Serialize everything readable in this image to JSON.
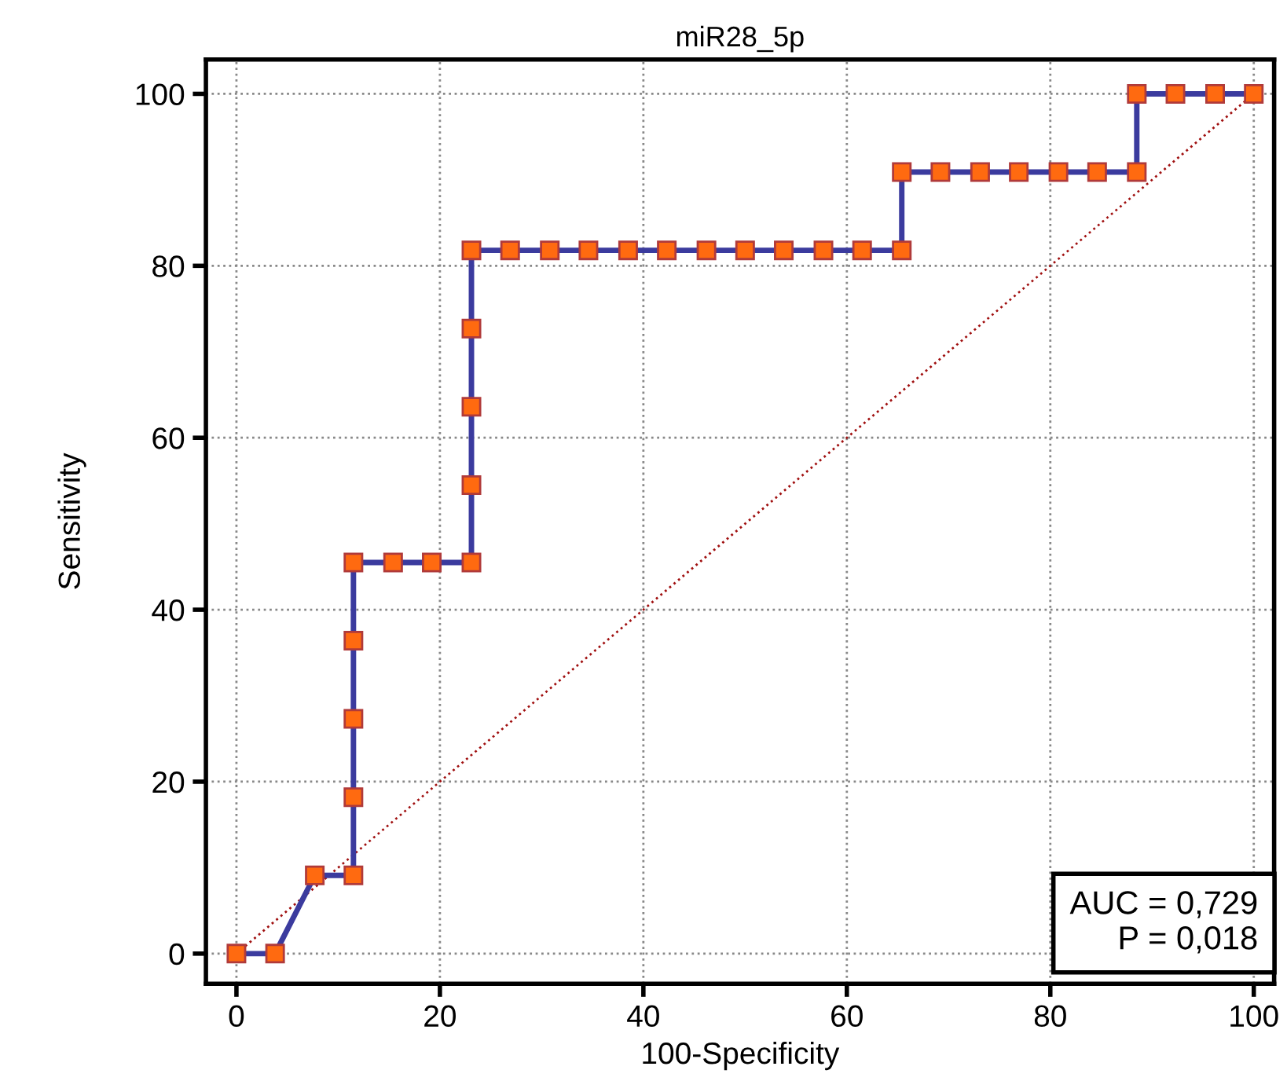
{
  "chart_data": {
    "type": "line",
    "title": "miR28_5p",
    "xlabel": "100-Specificity",
    "ylabel": "Sensitivity",
    "xlim": [
      -3,
      102
    ],
    "ylim": [
      -3.5,
      104
    ],
    "xticks": [
      0,
      20,
      40,
      60,
      80,
      100
    ],
    "yticks": [
      0,
      20,
      40,
      60,
      80,
      100
    ],
    "grid": true,
    "marker": "square",
    "line_style": "solid",
    "series": [
      {
        "color": "#3b3b9e",
        "x": [
          0,
          3.8,
          7.7,
          11.5,
          11.5,
          11.5,
          11.5,
          11.5,
          15.4,
          19.2,
          23.1,
          23.1,
          23.1,
          23.1,
          23.1,
          26.9,
          30.8,
          34.6,
          38.5,
          42.3,
          46.2,
          50.0,
          53.8,
          57.7,
          61.5,
          65.4,
          65.4,
          69.2,
          73.1,
          76.9,
          80.8,
          84.6,
          88.5,
          88.5,
          92.3,
          96.2,
          100
        ],
        "values": [
          0,
          0,
          9.1,
          9.1,
          18.2,
          27.3,
          36.4,
          45.5,
          45.5,
          45.5,
          45.5,
          54.5,
          63.6,
          72.7,
          81.8,
          81.8,
          81.8,
          81.8,
          81.8,
          81.8,
          81.8,
          81.8,
          81.8,
          81.8,
          81.8,
          81.8,
          90.9,
          90.9,
          90.9,
          90.9,
          90.9,
          90.9,
          90.9,
          100,
          100,
          100,
          100
        ]
      },
      {
        "color": "#a01010",
        "x": [
          0,
          100
        ],
        "values": [
          0,
          100
        ],
        "marker": "none",
        "line_style": "dotted"
      }
    ],
    "annotations": [
      "AUC = 0,729",
      "P = 0,018"
    ]
  }
}
